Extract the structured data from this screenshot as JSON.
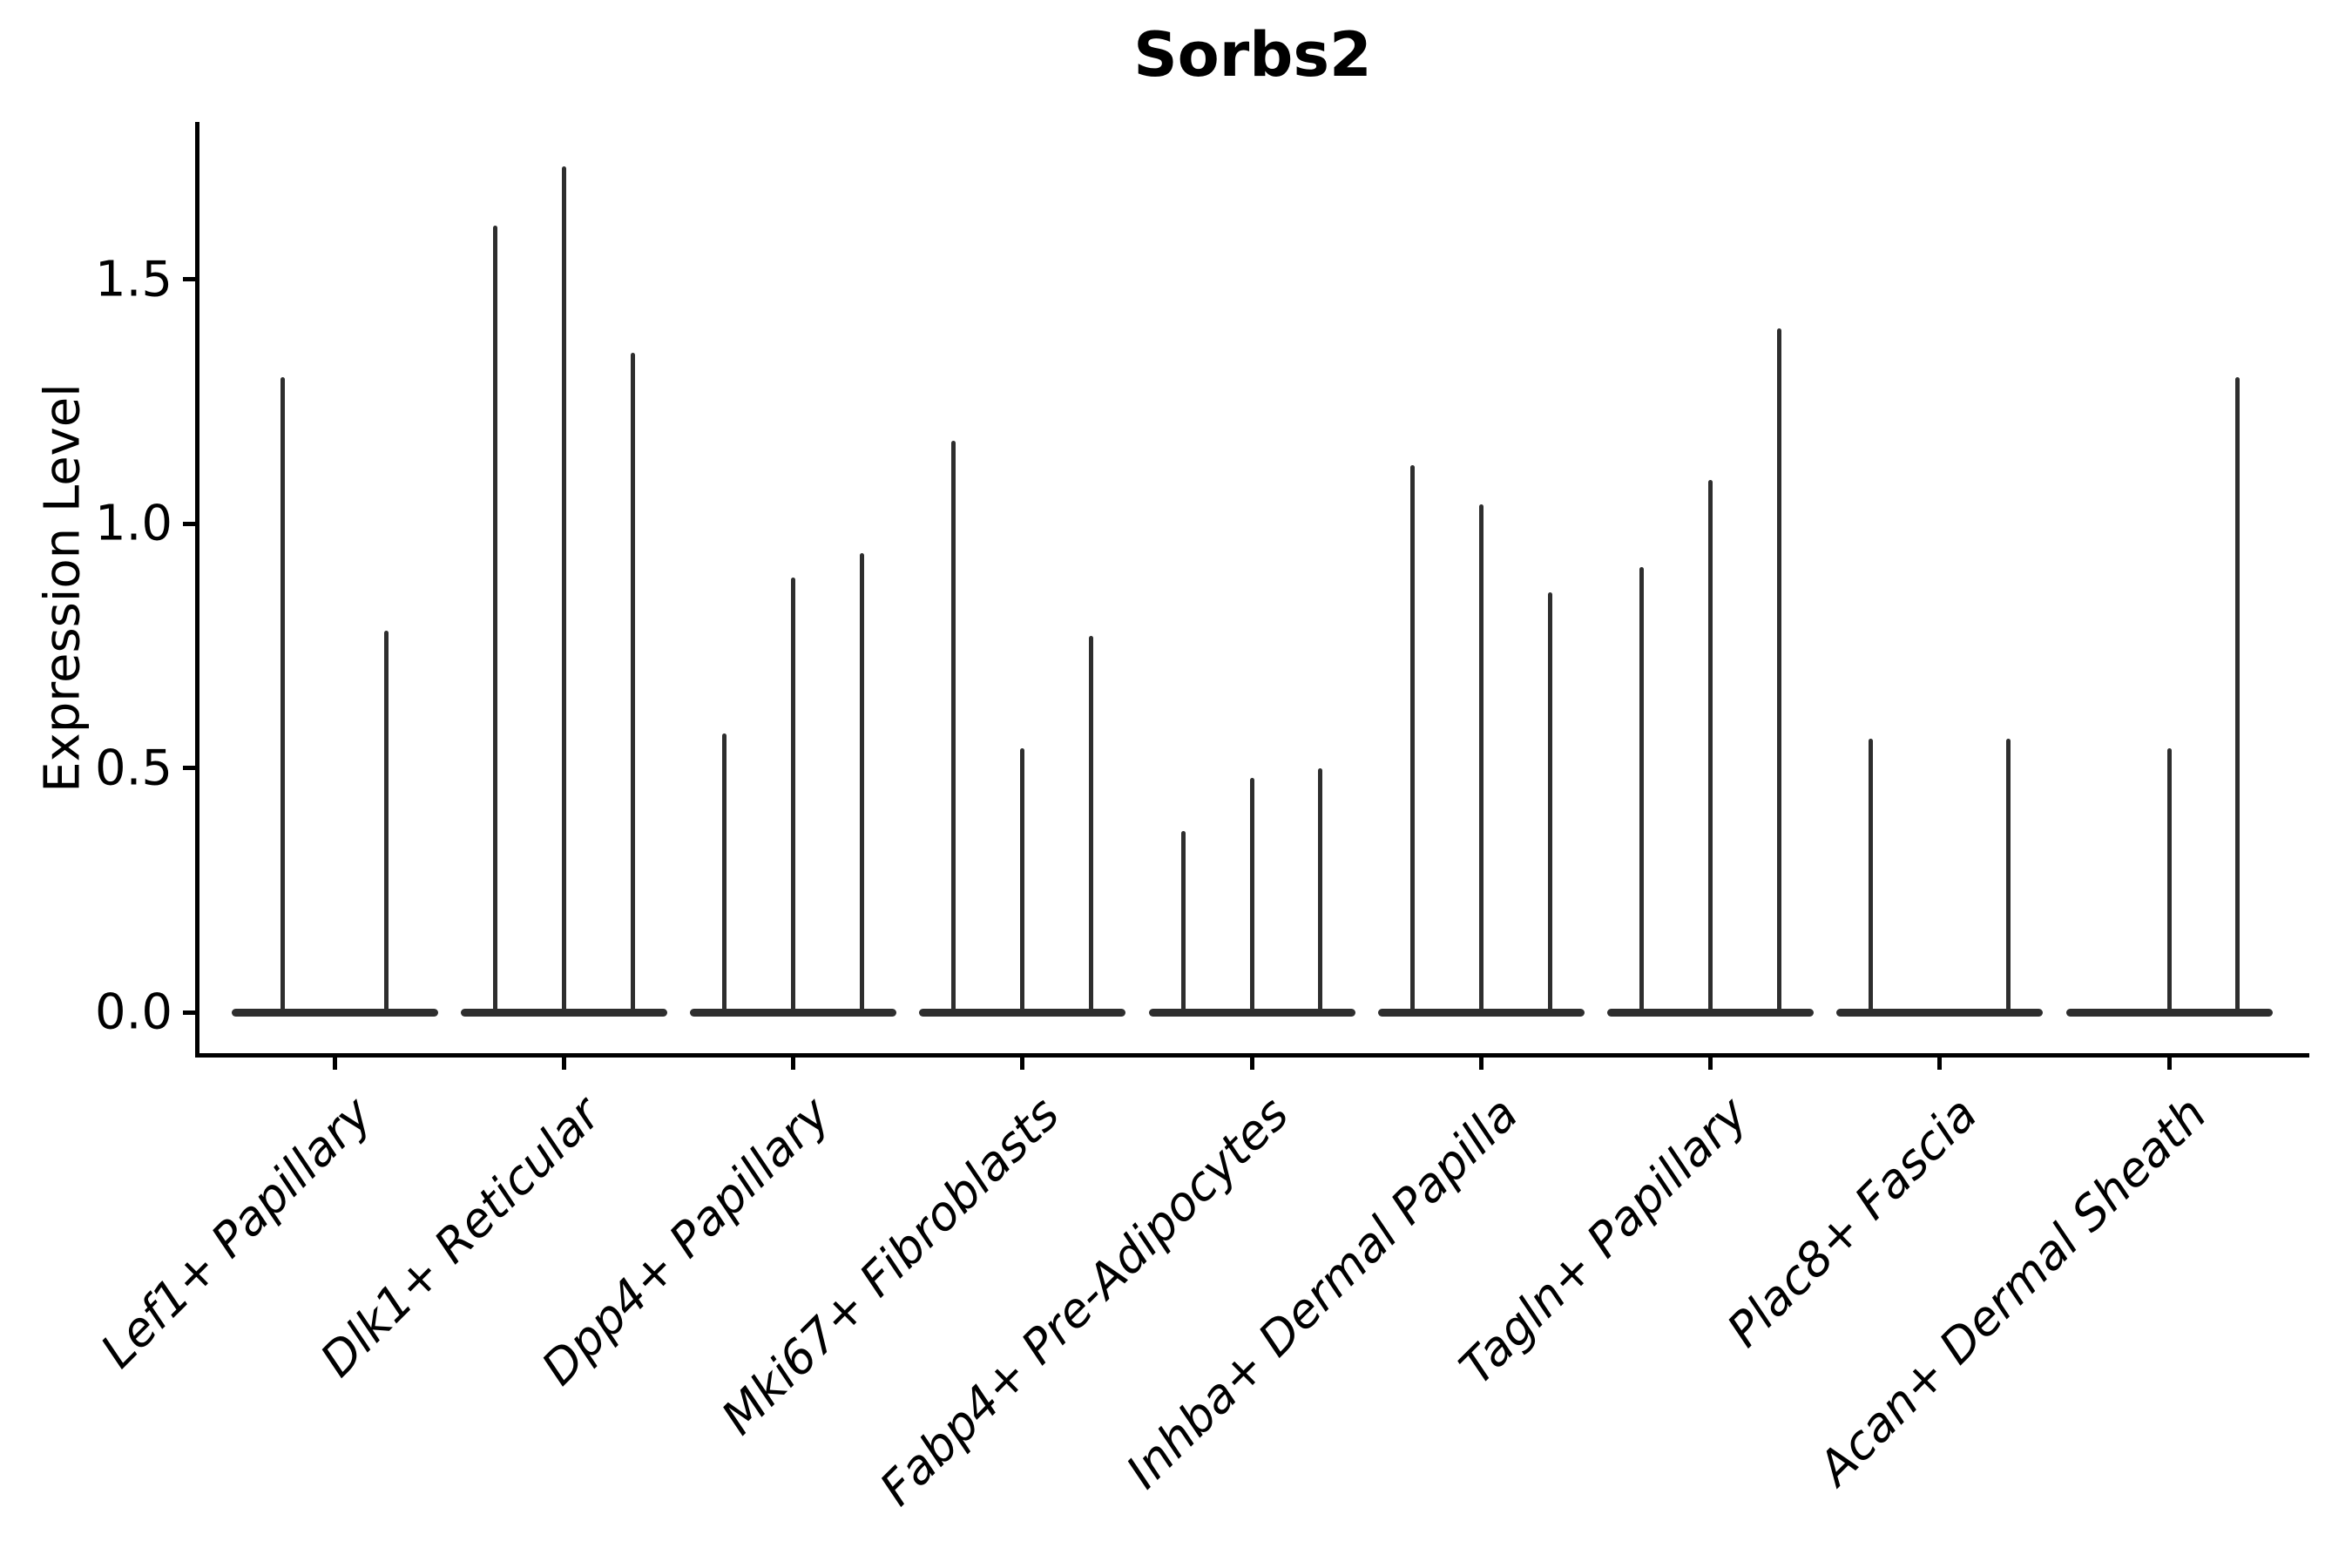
{
  "chart_data": {
    "type": "violin",
    "title": "Sorbs2",
    "ylabel": "Expression Level",
    "xlabel": "",
    "grid": false,
    "legend": "none",
    "background": "#ffffff",
    "violin_color": "#2e2e2e",
    "axis_color": "#000000",
    "ylim": [
      -0.09,
      1.82
    ],
    "yticks": [
      {
        "value": 0.0,
        "label": "0.0"
      },
      {
        "value": 0.5,
        "label": "0.5"
      },
      {
        "value": 1.0,
        "label": "1.0"
      },
      {
        "value": 1.5,
        "label": "1.5"
      }
    ],
    "categories": [
      "Lef1+ Papillary",
      "Dlk1+ Reticular",
      "Dpp4+ Papillary",
      "Mki67+ Fibroblasts",
      "Fabp4+ Pre-Adipocytes",
      "Inhba+ Dermal Papilla",
      "Tagln+ Papillary",
      "Plac8+ Fascia",
      "Acan+ Dermal Sheath"
    ],
    "description": "Violin plot; each cluster shows flattened violins at expression 0 with thin spikes reaching the maximum expression value",
    "groups": [
      {
        "category": "Lef1+ Papillary",
        "n_violins": 2,
        "spikes": [
          {
            "offset": -0.225,
            "max": 1.3
          },
          {
            "offset": 0.225,
            "max": 0.78
          }
        ]
      },
      {
        "category": "Dlk1+ Reticular",
        "n_violins": 3,
        "spikes": [
          {
            "offset": -0.3,
            "max": 1.61
          },
          {
            "offset": 0.0,
            "max": 1.73
          },
          {
            "offset": 0.3,
            "max": 1.35
          }
        ]
      },
      {
        "category": "Dpp4+ Papillary",
        "n_violins": 3,
        "spikes": [
          {
            "offset": -0.3,
            "max": 0.57
          },
          {
            "offset": 0.0,
            "max": 0.89
          },
          {
            "offset": 0.3,
            "max": 0.94
          }
        ]
      },
      {
        "category": "Mki67+ Fibroblasts",
        "n_violins": 3,
        "spikes": [
          {
            "offset": -0.3,
            "max": 1.17
          },
          {
            "offset": 0.0,
            "max": 0.54
          },
          {
            "offset": 0.3,
            "max": 0.77
          }
        ]
      },
      {
        "category": "Fabp4+ Pre-Adipocytes",
        "n_violins": 3,
        "spikes": [
          {
            "offset": -0.3,
            "max": 0.37
          },
          {
            "offset": 0.0,
            "max": 0.48
          },
          {
            "offset": 0.3,
            "max": 0.5
          }
        ]
      },
      {
        "category": "Inhba+ Dermal Papilla",
        "n_violins": 3,
        "spikes": [
          {
            "offset": -0.3,
            "max": 1.12
          },
          {
            "offset": 0.0,
            "max": 1.04
          },
          {
            "offset": 0.3,
            "max": 0.86
          }
        ]
      },
      {
        "category": "Tagln+ Papillary",
        "n_violins": 3,
        "spikes": [
          {
            "offset": -0.3,
            "max": 0.91
          },
          {
            "offset": 0.0,
            "max": 1.09
          },
          {
            "offset": 0.3,
            "max": 1.4
          }
        ]
      },
      {
        "category": "Plac8+ Fascia",
        "n_violins": 3,
        "spikes": [
          {
            "offset": -0.3,
            "max": 0.56
          },
          {
            "offset": 0.3,
            "max": 0.56
          }
        ]
      },
      {
        "category": "Acan+ Dermal Sheath",
        "n_violins": 3,
        "spikes": [
          {
            "offset": 0.0,
            "max": 0.54
          },
          {
            "offset": 0.3,
            "max": 1.3
          }
        ]
      }
    ]
  }
}
